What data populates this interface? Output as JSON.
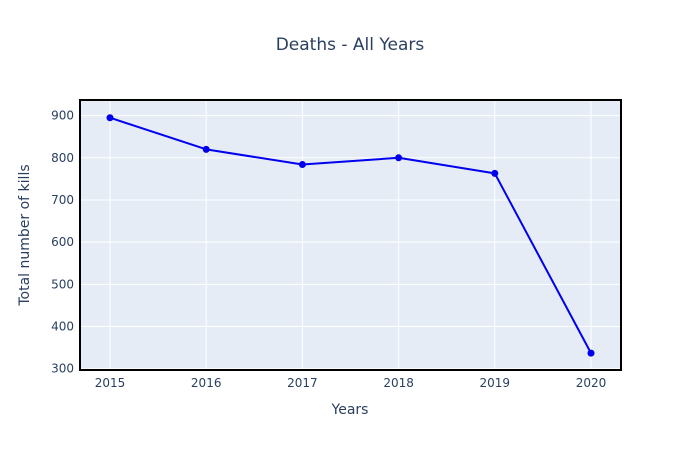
{
  "chart_data": {
    "type": "line",
    "title": "Deaths - All Years",
    "xlabel": "Years",
    "ylabel": "Total number of kills",
    "x": [
      "2015",
      "2016",
      "2017",
      "2018",
      "2019",
      "2020"
    ],
    "series": [
      {
        "values": [
          895,
          820,
          784,
          800,
          763,
          337
        ]
      }
    ],
    "ylim": [
      297,
      937
    ],
    "yticks": [
      300,
      400,
      500,
      600,
      700,
      800,
      900
    ],
    "grid": true,
    "legend": "none",
    "colors": {
      "line": "#0000ee",
      "plot_background": "#e5ecf6",
      "grid": "#ffffff",
      "frame": "#000000",
      "text": "#2a3f5f"
    }
  }
}
